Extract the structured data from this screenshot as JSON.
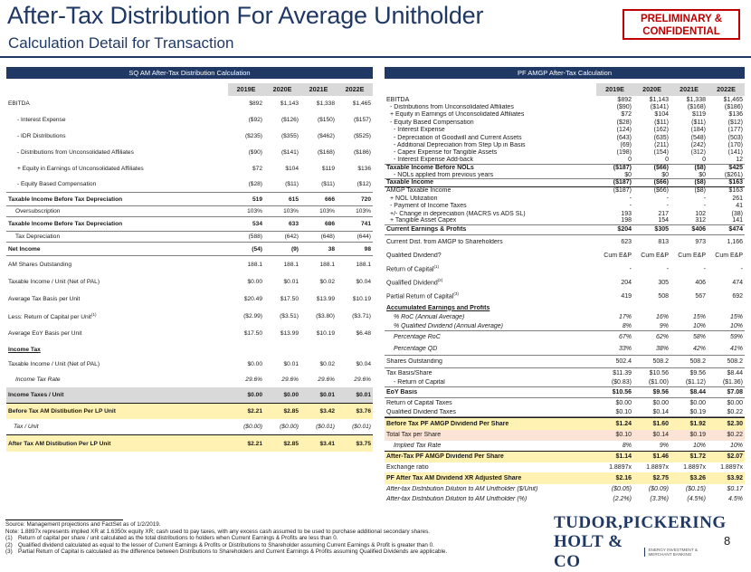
{
  "title": "After-Tax Distribution For Average Unitholder",
  "subtitle": "Calculation Detail for Transaction",
  "badge": {
    "line1": "PRELIMINARY &",
    "line2": "CONFIDENTIAL"
  },
  "left": {
    "title": "SQ AM After-Tax Distribution Calculation",
    "years": [
      "2019E",
      "2020E",
      "2021E",
      "2022E"
    ],
    "rows": [
      {
        "label": "EBITDA",
        "values": [
          "$892",
          "$1,143",
          "$1,338",
          "$1,465"
        ]
      },
      {
        "label": "- Interest Expense",
        "values": [
          "($92)",
          "($126)",
          "($150)",
          "($157)"
        ]
      },
      {
        "label": "- IDR Distributions",
        "values": [
          "($235)",
          "($355)",
          "($462)",
          "($525)"
        ]
      },
      {
        "label": "- Distributions from Unconsolidated Affiliates",
        "values": [
          "($90)",
          "($141)",
          "($168)",
          "($186)"
        ]
      },
      {
        "label": "+ Equity in Earnings of Unconsolidated Affiliates",
        "values": [
          "$72",
          "$104",
          "$119",
          "$136"
        ]
      },
      {
        "label": "- Equity Based Compensation",
        "values": [
          "($28)",
          "($11)",
          "($11)",
          "($12)"
        ]
      },
      {
        "label": "Taxable Income Before Tax Depreciation",
        "values": [
          "519",
          "615",
          "666",
          "720"
        ]
      },
      {
        "label": "Oversubscription",
        "values": [
          "103%",
          "103%",
          "103%",
          "103%"
        ]
      },
      {
        "label": "Taxable Income Before Tax Depreciation",
        "values": [
          "534",
          "633",
          "686",
          "741"
        ]
      },
      {
        "label": "Tax Depreciation",
        "values": [
          "(588)",
          "(642)",
          "(648)",
          "(644)"
        ]
      },
      {
        "label": "Net Income",
        "values": [
          "(54)",
          "(9)",
          "38",
          "98"
        ]
      },
      {
        "label": "AM Shares Outstanding",
        "values": [
          "188.1",
          "188.1",
          "188.1",
          "188.1"
        ]
      },
      {
        "label": "Taxable Income / Unit (Net of PAL)",
        "values": [
          "$0.00",
          "$0.01",
          "$0.02",
          "$0.04"
        ]
      },
      {
        "label": "Average Tax Basis per Unit",
        "values": [
          "$20.49",
          "$17.50",
          "$13.99",
          "$10.19"
        ]
      },
      {
        "label": "Less: Return of Capital per Unit",
        "sup": "(1)",
        "values": [
          "($2.99)",
          "($3.51)",
          "($3.80)",
          "($3.71)"
        ]
      },
      {
        "label": "Average EoY Basis per Unit",
        "values": [
          "$17.50",
          "$13.99",
          "$10.19",
          "$6.48"
        ]
      },
      {
        "label": "Income Tax",
        "values": [
          "",
          "",
          "",
          ""
        ]
      },
      {
        "label": "Taxable Income / Unit (Net of PAL)",
        "values": [
          "$0.00",
          "$0.01",
          "$0.02",
          "$0.04"
        ]
      },
      {
        "label": "Income Tax Rate",
        "values": [
          "29.6%",
          "29.6%",
          "29.6%",
          "29.6%"
        ]
      },
      {
        "label": "Income Taxes / Unit",
        "values": [
          "$0.00",
          "$0.00",
          "$0.01",
          "$0.01"
        ]
      },
      {
        "label": "Before Tax AM Distibution Per LP Unit",
        "values": [
          "$2.21",
          "$2.85",
          "$3.42",
          "$3.76"
        ]
      },
      {
        "label": "Tax / Unit",
        "values": [
          "($0.00)",
          "($0.00)",
          "($0.01)",
          "($0.01)"
        ]
      },
      {
        "label": "After Tax AM Distibution Per LP Unit",
        "values": [
          "$2.21",
          "$2.85",
          "$3.41",
          "$3.75"
        ]
      }
    ]
  },
  "right": {
    "title": "PF AMGP After-Tax Calculation",
    "years": [
      "2019E",
      "2020E",
      "2021E",
      "2022E"
    ],
    "rows": [
      {
        "label": "EBITDA",
        "values": [
          "$892",
          "$1,143",
          "$1,338",
          "$1,465"
        ]
      },
      {
        "label": "- Distributions from Unconsolidated Affiliates",
        "values": [
          "($90)",
          "($141)",
          "($168)",
          "($186)"
        ]
      },
      {
        "label": "+ Equity in Earnings of Unconsolidated Affiliates",
        "values": [
          "$72",
          "$104",
          "$119",
          "$136"
        ]
      },
      {
        "label": "- Equity Based Compensation",
        "values": [
          "($28)",
          "($11)",
          "($11)",
          "($12)"
        ]
      },
      {
        "label": "- Interest Expense",
        "values": [
          "(124)",
          "(162)",
          "(184)",
          "(177)"
        ]
      },
      {
        "label": "- Depreciation of Goodwill and Current Assets",
        "values": [
          "(643)",
          "(635)",
          "(548)",
          "(503)"
        ]
      },
      {
        "label": "- Additional Depreciation from Step Up in Basis",
        "values": [
          "(69)",
          "(211)",
          "(242)",
          "(170)"
        ]
      },
      {
        "label": "- Capex Expense for Tangible Assets",
        "values": [
          "(198)",
          "(154)",
          "(312)",
          "(141)"
        ]
      },
      {
        "label": "- Interest Expense Add-back",
        "values": [
          "0",
          "0",
          "0",
          "12"
        ]
      },
      {
        "label": "Taxable Income Before NOLs",
        "values": [
          "($187)",
          "($66)",
          "($8)",
          "$425"
        ]
      },
      {
        "label": "- NOLs applied from previous years",
        "values": [
          "$0",
          "$0",
          "$0",
          "($261)"
        ]
      },
      {
        "label": "Taxable Income",
        "values": [
          "($187)",
          "($66)",
          "($8)",
          "$163"
        ]
      },
      {
        "label": "AMGP Taxable Income",
        "values": [
          "($187)",
          "($66)",
          "($8)",
          "$163"
        ]
      },
      {
        "label": "+ NOL Utilization",
        "values": [
          "-",
          "-",
          "-",
          "261"
        ]
      },
      {
        "label": "- Payment of Income Taxes",
        "values": [
          "-",
          "-",
          "-",
          "41"
        ]
      },
      {
        "label": "+/- Change in depreciation (MACRS vs ADS SL)",
        "values": [
          "193",
          "217",
          "102",
          "(38)"
        ]
      },
      {
        "label": "+ Tangible Asset Capex",
        "values": [
          "198",
          "154",
          "312",
          "141"
        ]
      },
      {
        "label": "Current Earnings & Profits",
        "values": [
          "$204",
          "$305",
          "$406",
          "$474"
        ]
      },
      {
        "label": "Current Dist. from AMGP to Shareholders",
        "values": [
          "623",
          "813",
          "973",
          "1,166"
        ]
      },
      {
        "label": "Qualified Dividend?",
        "values": [
          "Cum E&P",
          "Cum E&P",
          "Cum E&P",
          "Cum E&P"
        ]
      },
      {
        "label": "Return of Capital",
        "sup": "(1)",
        "values": [
          "-",
          "-",
          "-",
          "-"
        ]
      },
      {
        "label": "Qualified Dividend",
        "sup": "(2)",
        "values": [
          "204",
          "305",
          "406",
          "474"
        ]
      },
      {
        "label": "Partial Return of Capital",
        "sup": "(3)",
        "values": [
          "419",
          "508",
          "567",
          "692"
        ]
      },
      {
        "label": "Accumulated Earnings and Profits",
        "values": [
          "",
          "",
          "",
          ""
        ]
      },
      {
        "label": "% RoC (Annual Average)",
        "values": [
          "17%",
          "16%",
          "15%",
          "15%"
        ]
      },
      {
        "label": "% Qualified Dividend (Annual Average)",
        "values": [
          "8%",
          "9%",
          "10%",
          "10%"
        ]
      },
      {
        "label": "Percentage RoC",
        "values": [
          "67%",
          "62%",
          "58%",
          "59%"
        ]
      },
      {
        "label": "Percentage QD",
        "values": [
          "33%",
          "38%",
          "42%",
          "41%"
        ]
      },
      {
        "label": "Shares Outstanding",
        "values": [
          "502.4",
          "508.2",
          "508.2",
          "508.2"
        ]
      },
      {
        "label": "Tax Basis/Share",
        "values": [
          "$11.39",
          "$10.56",
          "$9.56",
          "$8.44"
        ]
      },
      {
        "label": "- Return of Capital",
        "values": [
          "($0.83)",
          "($1.00)",
          "($1.12)",
          "($1.36)"
        ]
      },
      {
        "label": "EoY Basis",
        "values": [
          "$10.56",
          "$9.56",
          "$8.44",
          "$7.08"
        ]
      },
      {
        "label": "Return of Capital Taxes",
        "values": [
          "$0.00",
          "$0.00",
          "$0.00",
          "$0.00"
        ]
      },
      {
        "label": "Qualified Dividend Taxes",
        "values": [
          "$0.10",
          "$0.14",
          "$0.19",
          "$0.22"
        ]
      },
      {
        "label": "Before Tax PF AMGP Dividend Per Share",
        "values": [
          "$1.24",
          "$1.60",
          "$1.92",
          "$2.30"
        ]
      },
      {
        "label": "Total Tax per Share",
        "values": [
          "$0.10",
          "$0.14",
          "$0.19",
          "$0.22"
        ]
      },
      {
        "label": "Implied Tax Rate",
        "values": [
          "8%",
          "9%",
          "10%",
          "10%"
        ]
      },
      {
        "label": "After-Tax PF AMGP Dividend Per Share",
        "values": [
          "$1.14",
          "$1.46",
          "$1.72",
          "$2.07"
        ]
      },
      {
        "label": "Exchange ratio",
        "values": [
          "1.8897x",
          "1.8897x",
          "1.8897x",
          "1.8897x"
        ]
      },
      {
        "label": "PF After Tax AM Dividend XR Adjusted Share",
        "values": [
          "$2.16",
          "$2.75",
          "$3.26",
          "$3.92"
        ]
      },
      {
        "label": "After-tax Distribution Dilution to AM Unitholder ($/Unit)",
        "values": [
          "($0.05)",
          "($0.09)",
          "($0.15)",
          "$0.17"
        ]
      },
      {
        "label": "After-tax Distribution Dilution to AM Unitholder (%)",
        "values": [
          "(2.2%)",
          "(3.3%)",
          "(4.5%)",
          "4.5%"
        ]
      }
    ]
  },
  "footer": {
    "source": "Source: Management projections and FactSet as of 1/2/2019.",
    "note": "Note: 1.8897x represents implied XR at 1.6350x equity XR; cash used to pay taxes, with any excess cash assumed to be used to purchase additional secondary shares.",
    "footnotes": [
      {
        "mark": "(1)",
        "text": "Return of capital per share / unit calculated as the total distributions to holders when Current Earnings & Profits are less than 0."
      },
      {
        "mark": "(2)",
        "text": "Qualified dividend calculated as equal to the lesser of Current Earnings & Profits or Distributions to Shareholder assuming Current Earnings & Profit is greater than 0."
      },
      {
        "mark": "(3)",
        "text": "Partial Return of Capital is calculated as the difference between Distributions to Shareholders and Current Earnings & Profits assuming Qualified Dividends are applicable."
      }
    ]
  },
  "logo": {
    "line1": "TUDOR,PICKERING",
    "line2": "HOLT & CO",
    "tagline": "ENERGY INVESTMENT & MERCHANT BANKING"
  },
  "page_number": "8"
}
